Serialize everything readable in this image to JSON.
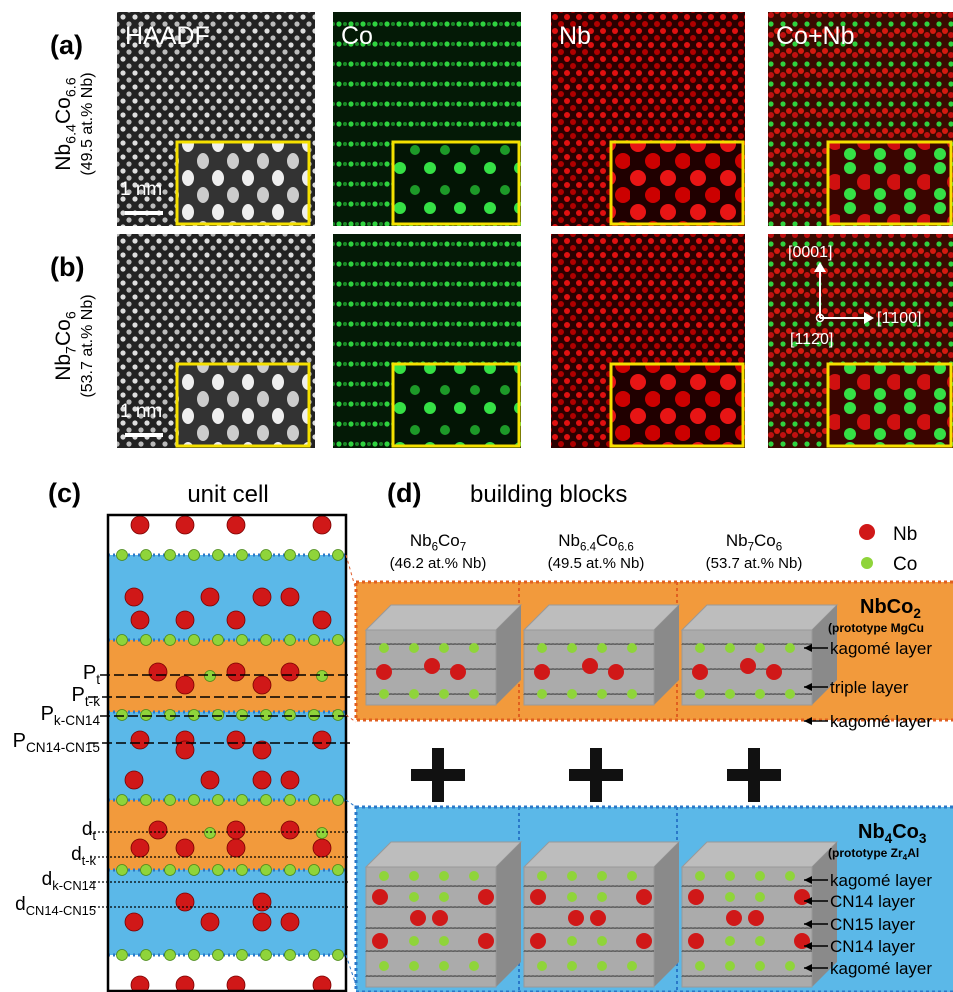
{
  "image_headers": [
    "HAADF",
    "Co",
    "Nb",
    "Co+Nb"
  ],
  "a": {
    "label": "(a)",
    "formula": [
      "Nb",
      "6.4",
      "Co",
      "6.6"
    ],
    "composition": "(49.5 at.% Nb)",
    "scale_bar": "1 nm"
  },
  "b": {
    "label": "(b)",
    "formula": [
      "Nb",
      "7",
      "Co",
      "6"
    ],
    "composition": "(53.7 at.% Nb)",
    "scale_bar": "1 nm",
    "directions": [
      "[0001]",
      "[1̄100]",
      "[112̄0]"
    ]
  },
  "c": {
    "label": "(c)",
    "title": "unit cell",
    "planes": [
      [
        "P",
        "t"
      ],
      [
        "P",
        "t-k"
      ],
      [
        "P",
        "k-CN14"
      ],
      [
        "P",
        "CN14-CN15"
      ]
    ],
    "spacings": [
      [
        "d",
        "t"
      ],
      [
        "d",
        "t-k"
      ],
      [
        "d",
        "k-CN14"
      ],
      [
        "d",
        "CN14-CN15"
      ]
    ]
  },
  "d": {
    "label": "(d)",
    "title": "building blocks",
    "columns": [
      {
        "formula": [
          "Nb",
          "6",
          "Co",
          "7"
        ],
        "composition": "(46.2 at.% Nb)"
      },
      {
        "formula": [
          "Nb",
          "6.4",
          "Co",
          "6.6"
        ],
        "composition": "(49.5 at.% Nb)"
      },
      {
        "formula": [
          "Nb",
          "7",
          "Co",
          "6"
        ],
        "composition": "(53.7 at.% Nb)"
      }
    ],
    "legend": [
      "Nb",
      "Co"
    ],
    "blocks": [
      {
        "formula": [
          "NbCo",
          "2"
        ],
        "prototype": [
          "(prototype MgCu"
        ],
        "layers": [
          "kagomé layer",
          "triple layer",
          "kagomé layer"
        ]
      },
      {
        "formula": [
          "Nb",
          "4",
          "Co",
          "3"
        ],
        "prototype": [
          "(prototype Zr",
          "4",
          "Al"
        ],
        "layers": [
          "kagomé layer",
          "CN14 layer",
          "CN15 layer",
          "CN14 layer",
          "kagomé layer"
        ]
      }
    ]
  }
}
